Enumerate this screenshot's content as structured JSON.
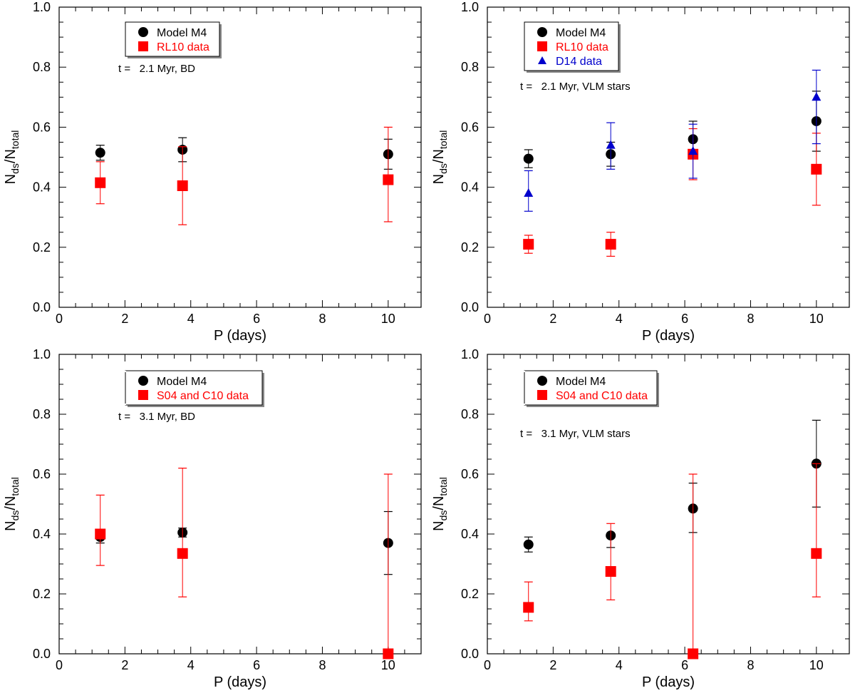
{
  "figure": {
    "ylabel_main": "N",
    "ylabel_sub1": "ds",
    "ylabel_slash": "/N",
    "ylabel_sub2": "total"
  },
  "chart_data": [
    {
      "type": "scatter",
      "xlabel": "P (days)",
      "ylabel": "Nds/Ntotal",
      "xlim": [
        0,
        11
      ],
      "ylim": [
        0,
        1
      ],
      "xticks": [
        "0",
        "2",
        "4",
        "6",
        "8",
        "10"
      ],
      "yticks": [
        "0.0",
        "0.2",
        "0.4",
        "0.6",
        "0.8",
        "1.0"
      ],
      "annotation": "t =   2.1 Myr, BD",
      "series": [
        {
          "name": "Model M4",
          "marker": "circle",
          "color": "#000000",
          "points": [
            {
              "x": 1.25,
              "y": 0.515,
              "lo": 0.49,
              "hi": 0.54
            },
            {
              "x": 3.75,
              "y": 0.525,
              "lo": 0.485,
              "hi": 0.565
            },
            {
              "x": 10,
              "y": 0.51,
              "lo": 0.46,
              "hi": 0.56
            }
          ]
        },
        {
          "name": "RL10 data",
          "marker": "square",
          "color": "#ff0000",
          "points": [
            {
              "x": 1.25,
              "y": 0.415,
              "lo": 0.345,
              "hi": 0.485
            },
            {
              "x": 3.75,
              "y": 0.405,
              "lo": 0.275,
              "hi": 0.535
            },
            {
              "x": 10,
              "y": 0.425,
              "lo": 0.285,
              "hi": 0.6
            }
          ]
        }
      ]
    },
    {
      "type": "scatter",
      "xlabel": "P (days)",
      "ylabel": "Nds/Ntotal",
      "xlim": [
        0,
        11
      ],
      "ylim": [
        0,
        1
      ],
      "xticks": [
        "0",
        "2",
        "4",
        "6",
        "8",
        "10"
      ],
      "yticks": [
        "0.0",
        "0.2",
        "0.4",
        "0.6",
        "0.8",
        "1.0"
      ],
      "annotation": "t =   2.1 Myr, VLM stars",
      "series": [
        {
          "name": "Model M4",
          "marker": "circle",
          "color": "#000000",
          "points": [
            {
              "x": 1.25,
              "y": 0.495,
              "lo": 0.465,
              "hi": 0.525
            },
            {
              "x": 3.75,
              "y": 0.51,
              "lo": 0.47,
              "hi": 0.55
            },
            {
              "x": 6.25,
              "y": 0.56,
              "lo": 0.5,
              "hi": 0.62
            },
            {
              "x": 10,
              "y": 0.62,
              "lo": 0.52,
              "hi": 0.72
            }
          ]
        },
        {
          "name": "RL10 data",
          "marker": "square",
          "color": "#ff0000",
          "points": [
            {
              "x": 1.25,
              "y": 0.21,
              "lo": 0.18,
              "hi": 0.24
            },
            {
              "x": 3.75,
              "y": 0.21,
              "lo": 0.17,
              "hi": 0.25
            },
            {
              "x": 6.25,
              "y": 0.51,
              "lo": 0.425,
              "hi": 0.595
            },
            {
              "x": 10,
              "y": 0.46,
              "lo": 0.34,
              "hi": 0.58
            }
          ]
        },
        {
          "name": "D14 data",
          "marker": "triangle",
          "color": "#0000cc",
          "points": [
            {
              "x": 1.25,
              "y": 0.38,
              "lo": 0.32,
              "hi": 0.455
            },
            {
              "x": 3.75,
              "y": 0.54,
              "lo": 0.46,
              "hi": 0.615
            },
            {
              "x": 6.25,
              "y": 0.52,
              "lo": 0.43,
              "hi": 0.61
            },
            {
              "x": 10,
              "y": 0.7,
              "lo": 0.545,
              "hi": 0.79
            }
          ]
        }
      ]
    },
    {
      "type": "scatter",
      "xlabel": "P (days)",
      "ylabel": "Nds/Ntotal",
      "xlim": [
        0,
        11
      ],
      "ylim": [
        0,
        1
      ],
      "xticks": [
        "0",
        "2",
        "4",
        "6",
        "8",
        "10"
      ],
      "yticks": [
        "0.0",
        "0.2",
        "0.4",
        "0.6",
        "0.8",
        "1.0"
      ],
      "annotation": "t =   3.1 Myr, BD",
      "series": [
        {
          "name": "Model M4",
          "marker": "circle",
          "color": "#000000",
          "points": [
            {
              "x": 1.25,
              "y": 0.39,
              "lo": 0.37,
              "hi": 0.41
            },
            {
              "x": 3.75,
              "y": 0.405,
              "lo": 0.39,
              "hi": 0.42
            },
            {
              "x": 10,
              "y": 0.37,
              "lo": 0.265,
              "hi": 0.475
            }
          ]
        },
        {
          "name": "S04 and C10 data",
          "marker": "square",
          "color": "#ff0000",
          "points": [
            {
              "x": 1.25,
              "y": 0.4,
              "lo": 0.295,
              "hi": 0.53
            },
            {
              "x": 3.75,
              "y": 0.335,
              "lo": 0.19,
              "hi": 0.62
            },
            {
              "x": 10,
              "y": 0.0,
              "lo": 0.0,
              "hi": 0.6
            }
          ]
        }
      ]
    },
    {
      "type": "scatter",
      "xlabel": "P (days)",
      "ylabel": "Nds/Ntotal",
      "xlim": [
        0,
        11
      ],
      "ylim": [
        0,
        1
      ],
      "xticks": [
        "0",
        "2",
        "4",
        "6",
        "8",
        "10"
      ],
      "yticks": [
        "0.0",
        "0.2",
        "0.4",
        "0.6",
        "0.8",
        "1.0"
      ],
      "annotation": "t =   3.1 Myr, VLM stars",
      "series": [
        {
          "name": "Model M4",
          "marker": "circle",
          "color": "#000000",
          "points": [
            {
              "x": 1.25,
              "y": 0.365,
              "lo": 0.34,
              "hi": 0.39
            },
            {
              "x": 3.75,
              "y": 0.395,
              "lo": 0.355,
              "hi": 0.395
            },
            {
              "x": 6.25,
              "y": 0.485,
              "lo": 0.405,
              "hi": 0.57
            },
            {
              "x": 10,
              "y": 0.635,
              "lo": 0.49,
              "hi": 0.78
            }
          ]
        },
        {
          "name": "S04 and C10 data",
          "marker": "square",
          "color": "#ff0000",
          "points": [
            {
              "x": 1.25,
              "y": 0.155,
              "lo": 0.11,
              "hi": 0.24
            },
            {
              "x": 3.75,
              "y": 0.275,
              "lo": 0.18,
              "hi": 0.435
            },
            {
              "x": 6.25,
              "y": 0.0,
              "lo": 0.0,
              "hi": 0.6
            },
            {
              "x": 10,
              "y": 0.335,
              "lo": 0.19,
              "hi": 0.635
            }
          ]
        }
      ]
    }
  ]
}
